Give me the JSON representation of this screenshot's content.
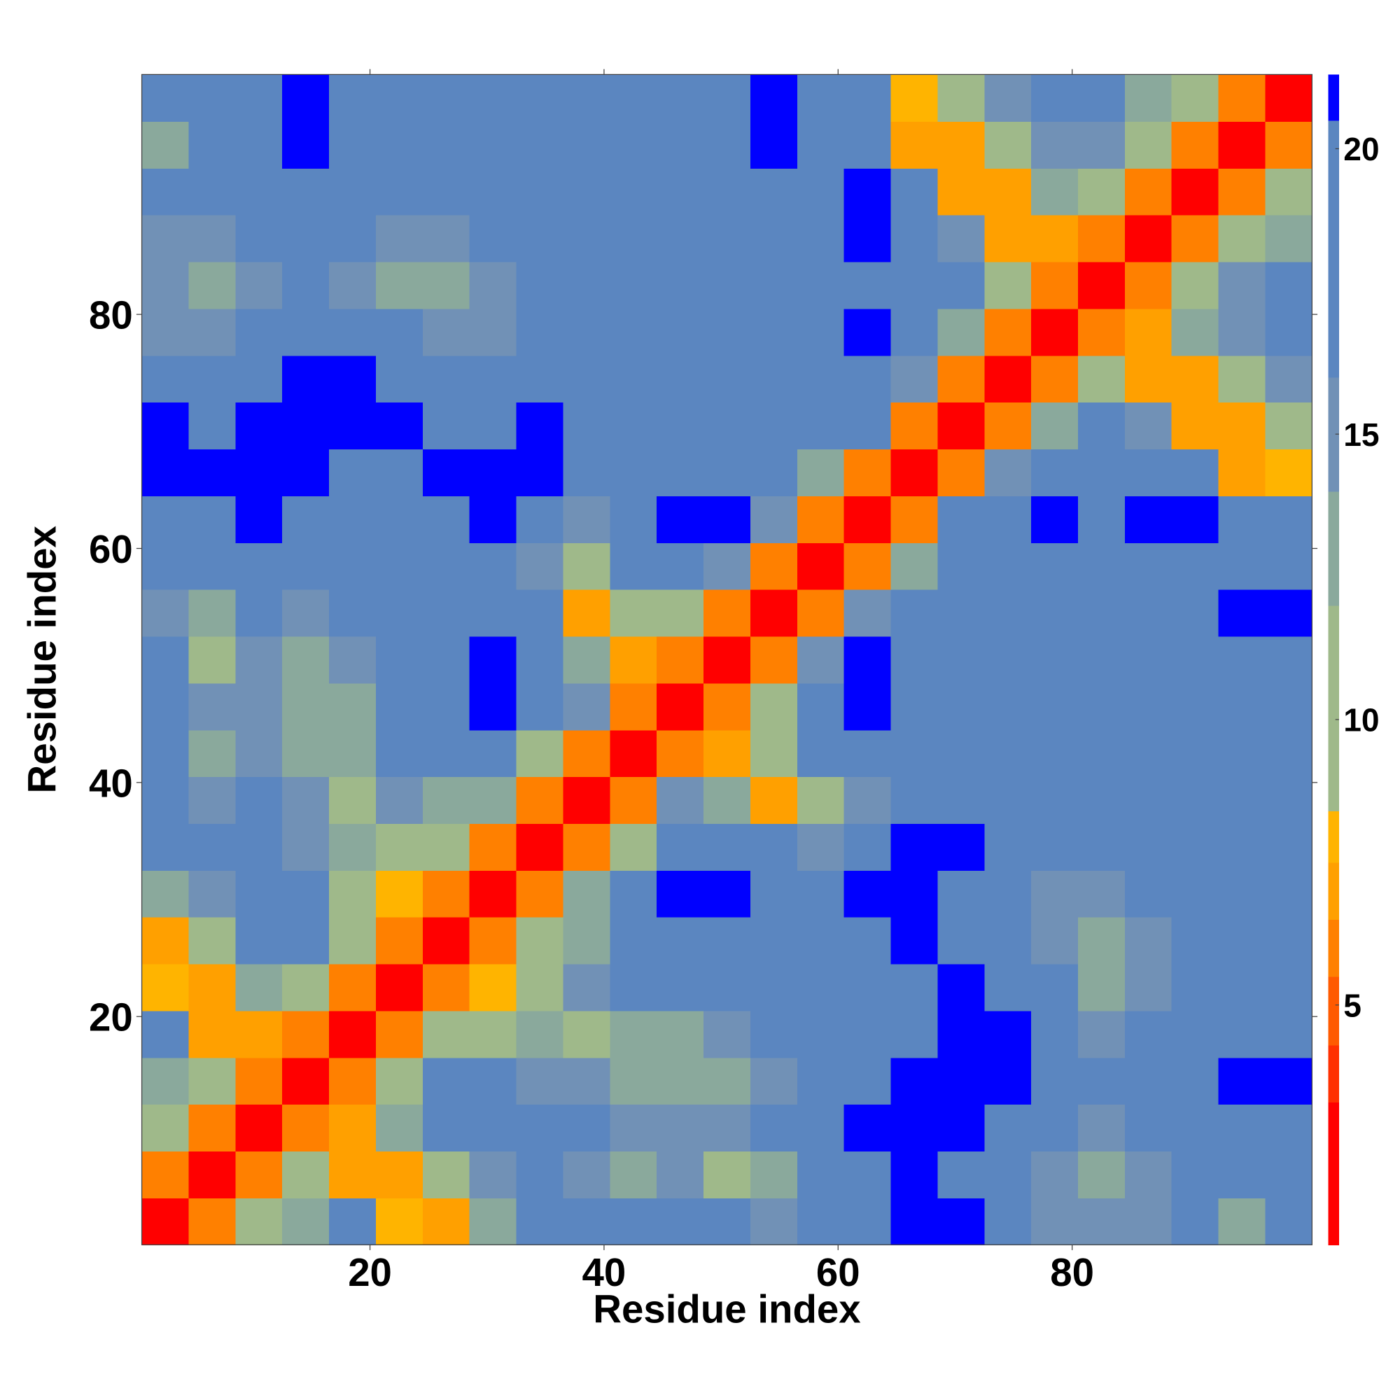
{
  "chart_data": {
    "type": "heatmap",
    "x_label": "Residue index",
    "y_label": "Residue index",
    "xlim": [
      0.5,
      100.5
    ],
    "ylim": [
      0.5,
      100.5
    ],
    "xticks": [
      20,
      40,
      60,
      80
    ],
    "yticks": [
      20,
      40,
      60,
      80
    ],
    "xbins": [
      0.5,
      4.5,
      8.5,
      12.5,
      16.5,
      20.5,
      24.5,
      28.5,
      32.5,
      36.5,
      40.5,
      44.5,
      48.5,
      52.5,
      56.5,
      60.5,
      64.5,
      68.5,
      72.5,
      76.5,
      80.5,
      84.5,
      88.5,
      92.5,
      96.5,
      100.5
    ],
    "ybins": [
      0.5,
      4.5,
      8.5,
      12.5,
      16.5,
      20.5,
      24.5,
      28.5,
      32.5,
      36.5,
      40.5,
      44.5,
      48.5,
      52.5,
      56.5,
      60.5,
      64.5,
      68.5,
      72.5,
      76.5,
      80.5,
      84.5,
      88.5,
      92.5,
      96.5,
      100.5
    ],
    "clim": [
      0.8,
      21.3
    ],
    "cticks": [
      5,
      10,
      15,
      20
    ],
    "color_steps": [
      3.3,
      4.3,
      5.5,
      6.5,
      7.5,
      8.4,
      12,
      14,
      16,
      20.5
    ],
    "colors": [
      "#ff0000",
      "#ff3000",
      "#ff5a00",
      "#ff8000",
      "#ffa000",
      "#ffb400",
      "#9fb98a",
      "#8aa99c",
      "#7191b6",
      "#5b86c0",
      "#0000ff"
    ],
    "z": [
      [
        2,
        6,
        10,
        13,
        16,
        8,
        7,
        12,
        16,
        17,
        20,
        20,
        18,
        14,
        17,
        20,
        21,
        21,
        18,
        15,
        14,
        15,
        16,
        13,
        17
      ],
      [
        6,
        2,
        6,
        10,
        7,
        7,
        11,
        15,
        16,
        15,
        13,
        14,
        11,
        12,
        18,
        20,
        21,
        20,
        18,
        14,
        13,
        15,
        17,
        16,
        16
      ],
      [
        10,
        6,
        2,
        6,
        7,
        13,
        19,
        20,
        17,
        16,
        14,
        14,
        14,
        17,
        20,
        21,
        21,
        21,
        20,
        16,
        15,
        17,
        18,
        19,
        20
      ],
      [
        13,
        10,
        6,
        2,
        6,
        11,
        20,
        20,
        15,
        14,
        13,
        13,
        12,
        15,
        17,
        19,
        21,
        21,
        21,
        20,
        18,
        19,
        20,
        21,
        21
      ],
      [
        16,
        7,
        7,
        6,
        2,
        6,
        10,
        9,
        12,
        11,
        12,
        13,
        14,
        16,
        17,
        19,
        20,
        21,
        21,
        18,
        15,
        17,
        19,
        20,
        20
      ],
      [
        8,
        7,
        13,
        11,
        6,
        2,
        6,
        8,
        10,
        14,
        16,
        18,
        17,
        17,
        16,
        17,
        19,
        21,
        20,
        16,
        12,
        15,
        17,
        19,
        20
      ],
      [
        7,
        11,
        19,
        20,
        10,
        6,
        2,
        6,
        10,
        13,
        18,
        20,
        20,
        19,
        17,
        20,
        21,
        20,
        17,
        14,
        12,
        15,
        17,
        18,
        19
      ],
      [
        12,
        15,
        20,
        20,
        9,
        8,
        6,
        2,
        6,
        13,
        19,
        21,
        21,
        19,
        17,
        21,
        21,
        20,
        17,
        15,
        14,
        16,
        18,
        19,
        20
      ],
      [
        16,
        16,
        17,
        15,
        12,
        10,
        10,
        6,
        2,
        6,
        9,
        18,
        19,
        17,
        15,
        17,
        21,
        21,
        19,
        16,
        17,
        18,
        19,
        18,
        18
      ],
      [
        17,
        15,
        16,
        14,
        11,
        14,
        13,
        13,
        6,
        2,
        6,
        14,
        12,
        7,
        9,
        15,
        18,
        20,
        18,
        17,
        17,
        19,
        20,
        18,
        17
      ],
      [
        20,
        13,
        14,
        13,
        12,
        16,
        18,
        19,
        9,
        6,
        2,
        6,
        7,
        9,
        16,
        20,
        20,
        18,
        16,
        17,
        18,
        19,
        20,
        19,
        18
      ],
      [
        20,
        14,
        14,
        13,
        13,
        18,
        20,
        21,
        18,
        14,
        6,
        2,
        6,
        9,
        18,
        21,
        20,
        17,
        17,
        18,
        17,
        19,
        20,
        20,
        20
      ],
      [
        18,
        11,
        14,
        12,
        14,
        17,
        20,
        21,
        19,
        12,
        7,
        6,
        2,
        6,
        15,
        21,
        20,
        17,
        16,
        17,
        18,
        18,
        19,
        20,
        20
      ],
      [
        14,
        12,
        17,
        15,
        16,
        17,
        19,
        19,
        17,
        7,
        9,
        9,
        6,
        2,
        6,
        14,
        18,
        19,
        19,
        20,
        20,
        19,
        20,
        21,
        21
      ],
      [
        17,
        18,
        20,
        17,
        17,
        16,
        17,
        17,
        15,
        9,
        16,
        18,
        15,
        6,
        2,
        6,
        12,
        16,
        19,
        20,
        20,
        19,
        18,
        18,
        17
      ],
      [
        20,
        20,
        21,
        19,
        19,
        17,
        20,
        21,
        17,
        15,
        20,
        21,
        21,
        14,
        6,
        2,
        6,
        16,
        20,
        21,
        20,
        21,
        21,
        19,
        16
      ],
      [
        21,
        21,
        21,
        21,
        20,
        19,
        21,
        21,
        21,
        18,
        20,
        20,
        20,
        18,
        12,
        6,
        2,
        6,
        14,
        18,
        20,
        20,
        19,
        7,
        8
      ],
      [
        21,
        20,
        21,
        21,
        21,
        21,
        20,
        20,
        21,
        20,
        18,
        17,
        17,
        19,
        16,
        16,
        6,
        2,
        6,
        12,
        16,
        15,
        7,
        7,
        11
      ],
      [
        18,
        18,
        20,
        21,
        21,
        20,
        17,
        17,
        19,
        18,
        16,
        17,
        16,
        19,
        19,
        20,
        14,
        6,
        2,
        6,
        9,
        7,
        7,
        11,
        15
      ],
      [
        15,
        14,
        16,
        20,
        18,
        16,
        14,
        15,
        16,
        17,
        17,
        18,
        17,
        20,
        20,
        21,
        18,
        12,
        6,
        2,
        6,
        7,
        12,
        15,
        17
      ],
      [
        14,
        13,
        15,
        18,
        15,
        12,
        12,
        14,
        17,
        17,
        18,
        17,
        18,
        20,
        20,
        20,
        20,
        16,
        9,
        6,
        2,
        6,
        10,
        14,
        16
      ],
      [
        15,
        15,
        17,
        19,
        17,
        15,
        15,
        16,
        18,
        19,
        19,
        19,
        18,
        19,
        19,
        21,
        20,
        15,
        7,
        7,
        6,
        2,
        6,
        10,
        13
      ],
      [
        16,
        17,
        18,
        20,
        19,
        17,
        17,
        18,
        19,
        20,
        20,
        20,
        19,
        20,
        18,
        21,
        19,
        7,
        7,
        12,
        10,
        6,
        2,
        6,
        10
      ],
      [
        13,
        16,
        19,
        21,
        20,
        19,
        18,
        19,
        18,
        18,
        19,
        20,
        20,
        21,
        18,
        19,
        7,
        7,
        11,
        15,
        14,
        10,
        6,
        2,
        6
      ],
      [
        17,
        16,
        20,
        21,
        20,
        20,
        19,
        20,
        18,
        17,
        18,
        20,
        20,
        21,
        17,
        16,
        8,
        11,
        15,
        17,
        16,
        13,
        10,
        6,
        2
      ]
    ]
  }
}
